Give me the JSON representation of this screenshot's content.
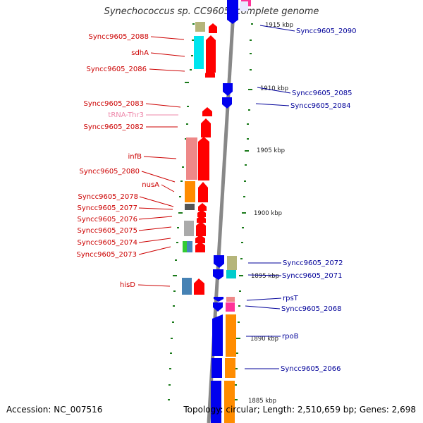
{
  "title": "Synechococcus sp. CC9605, complete genome",
  "footer": {
    "accession": "Accession: NC_007516",
    "topology": "Topology: circular; Length: 2,510,659 bp; Genes: 2,698"
  },
  "colors": {
    "forward_gene": "#ff0000",
    "reverse_gene": "#0000ee",
    "left_label": "#cc0000",
    "right_label": "#000099",
    "trna_label": "#ee88aa",
    "backbone": "#888888",
    "tick": "#006600"
  },
  "ticks": [
    "1915 kbp",
    "1910 kbp",
    "1905 kbp",
    "1900 kbp",
    "1895 kbp",
    "1890 kbp",
    "1885 kbp"
  ],
  "left_labels": [
    "Syncc9605_2088",
    "sdhA",
    "Syncc9605_2086",
    "Syncc9605_2083",
    "tRNA-Thr3",
    "Syncc9605_2082",
    "infB",
    "Syncc9605_2080",
    "nusA",
    "Syncc9605_2078",
    "Syncc9605_2077",
    "Syncc9605_2076",
    "Syncc9605_2075",
    "Syncc9605_2074",
    "Syncc9605_2073",
    "hisD"
  ],
  "right_labels": [
    "Syncc9605_2090",
    "Syncc9605_2085",
    "Syncc9605_2084",
    "Syncc9605_2072",
    "Syncc9605_2071",
    "rpsT",
    "Syncc9605_2068",
    "rpoB",
    "Syncc9605_2066"
  ]
}
